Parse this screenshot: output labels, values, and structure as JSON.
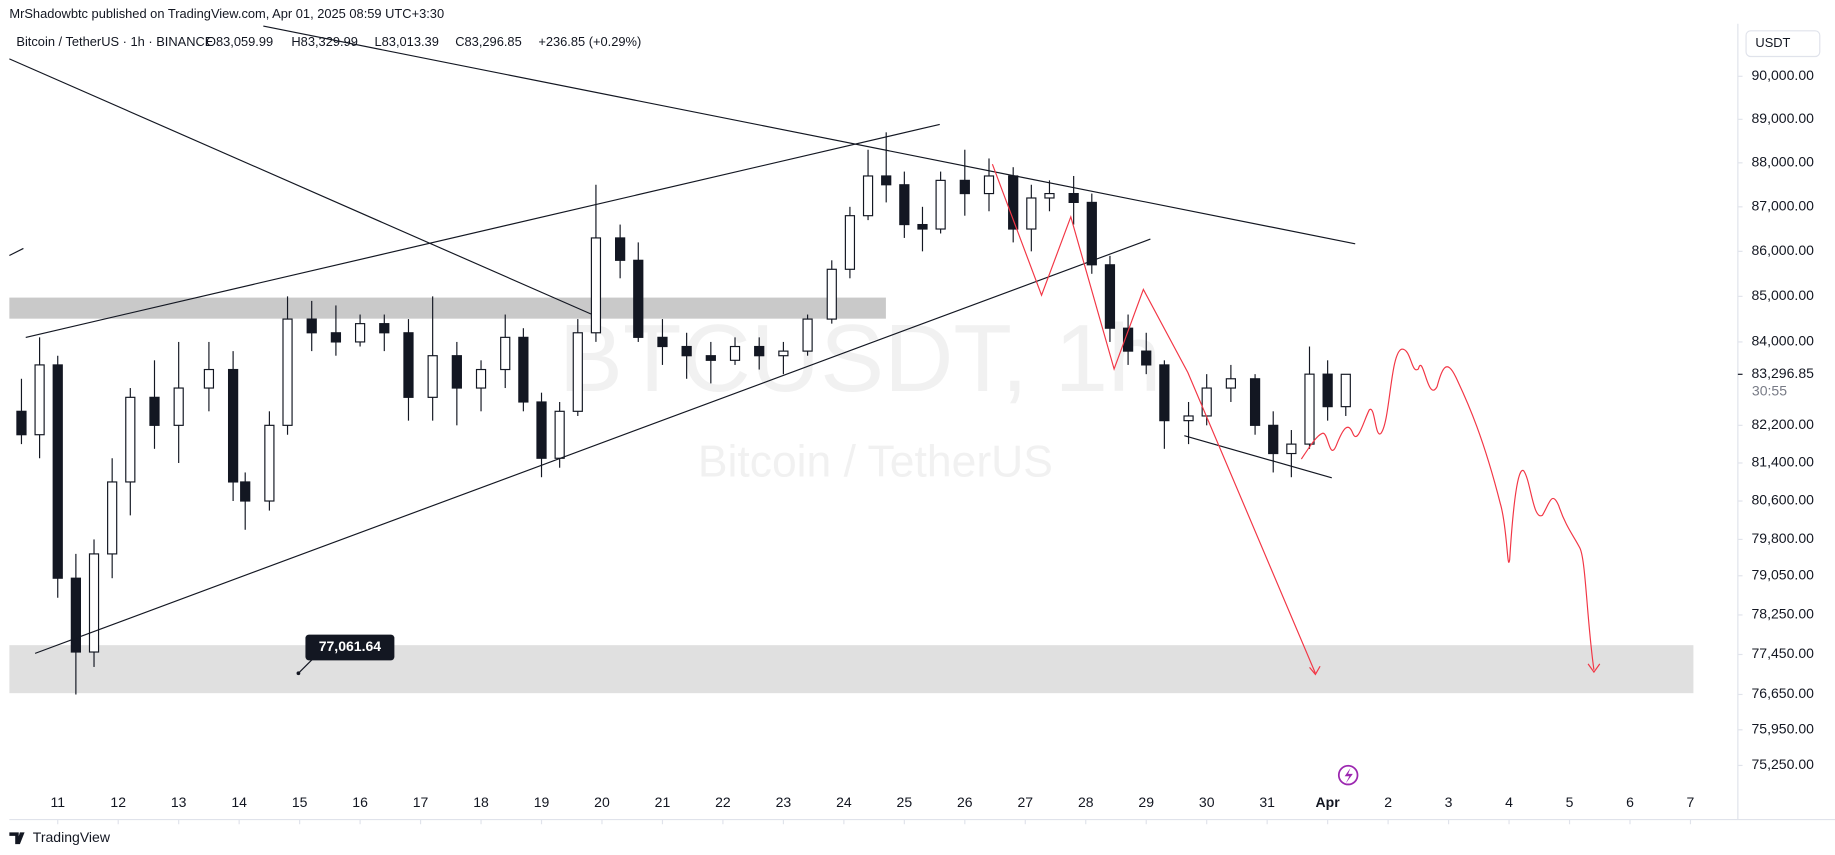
{
  "header": {
    "publisher": "MrShadowbtc published on TradingView.com, Apr 01, 2025 08:59 UTC+3:30",
    "symbol": "Bitcoin / TetherUS · 1h · BINANCE",
    "open": "O83,059.99",
    "high": "H83,329.99",
    "low": "L83,013.39",
    "close": "C83,296.85",
    "change": "+236.85 (+0.29%)",
    "currency": "USDT",
    "logo": "TradingView"
  },
  "chart_data": {
    "type": "candlestick",
    "watermark": "BTCUSDT, 1h",
    "watermark_sub": "Bitcoin / TetherUS",
    "annotation": "77,061.64",
    "last_price": {
      "value": 83296.85,
      "label": "83,296.85"
    },
    "countdown": "30:55",
    "log_scale": true,
    "grid": false,
    "up_color": "#ffffff",
    "down_color": "#131722",
    "outline_color": "#131722",
    "xlim": [
      10.2,
      38.3
    ],
    "xticks": [
      11,
      12,
      13,
      14,
      15,
      16,
      17,
      18,
      19,
      20,
      21,
      22,
      23,
      24,
      25,
      26,
      27,
      28,
      29,
      30,
      31,
      {
        "value": 32,
        "label": "Apr"
      },
      {
        "value": 33,
        "label": "2"
      },
      {
        "value": 34,
        "label": "3"
      },
      {
        "value": 35,
        "label": "4"
      },
      {
        "value": 36,
        "label": "5"
      },
      {
        "value": 37,
        "label": "6"
      },
      {
        "value": 38,
        "label": "7"
      }
    ],
    "ylim": [
      74200,
      90960
    ],
    "yticks": [
      {
        "value": 90000,
        "label": "90,000.00"
      },
      {
        "value": 89000,
        "label": "89,000.00"
      },
      {
        "value": 88000,
        "label": "88,000.00"
      },
      {
        "value": 87000,
        "label": "87,000.00"
      },
      {
        "value": 86000,
        "label": "86,000.00"
      },
      {
        "value": 85000,
        "label": "85,000.00"
      },
      {
        "value": 84000,
        "label": "84,000.00"
      },
      {
        "value": 82200,
        "label": "82,200.00"
      },
      {
        "value": 81400,
        "label": "81,400.00"
      },
      {
        "value": 80600,
        "label": "80,600.00"
      },
      {
        "value": 79800,
        "label": "79,800.00"
      },
      {
        "value": 79050,
        "label": "79,050.00"
      },
      {
        "value": 78250,
        "label": "78,250.00"
      },
      {
        "value": 77450,
        "label": "77,450.00"
      },
      {
        "value": 76650,
        "label": "76,650.00"
      },
      {
        "value": 75950,
        "label": "75,950.00"
      },
      {
        "value": 75250,
        "label": "75,250.00"
      }
    ],
    "x": [
      10.4,
      10.7,
      11.0,
      11.3,
      11.6,
      11.9,
      12.2,
      12.6,
      13.0,
      13.5,
      13.9,
      14.1,
      14.5,
      14.8,
      15.2,
      15.6,
      16.0,
      16.4,
      16.8,
      17.2,
      17.6,
      18.0,
      18.4,
      18.7,
      19.0,
      19.3,
      19.6,
      19.9,
      20.3,
      20.6,
      21.0,
      21.4,
      21.8,
      22.2,
      22.6,
      23.0,
      23.4,
      23.8,
      24.1,
      24.4,
      24.7,
      25.0,
      25.3,
      25.6,
      26.0,
      26.4,
      26.8,
      27.1,
      27.4,
      27.8,
      28.1,
      28.4,
      28.7,
      29.0,
      29.3,
      29.7,
      30.0,
      30.4,
      30.8,
      31.1,
      31.4,
      31.7,
      32.0,
      32.3
    ],
    "open": [
      82500,
      82000,
      83500,
      79000,
      77500,
      79500,
      81000,
      82800,
      82200,
      83000,
      83400,
      81000,
      80600,
      82200,
      84500,
      84200,
      84000,
      84400,
      84200,
      82800,
      83700,
      83000,
      83400,
      84100,
      82700,
      81500,
      82500,
      84200,
      86300,
      85800,
      84100,
      83900,
      83700,
      83600,
      83900,
      83700,
      83800,
      84500,
      85600,
      86800,
      87700,
      87500,
      86600,
      86500,
      87600,
      87300,
      87700,
      86500,
      87200,
      87300,
      87100,
      85700,
      84300,
      83800,
      83500,
      82300,
      82400,
      83000,
      83200,
      82200,
      81600,
      81800,
      83300,
      82600
    ],
    "high": [
      83200,
      84100,
      83700,
      79500,
      79800,
      81500,
      83000,
      83600,
      84000,
      84000,
      83800,
      81200,
      82500,
      85000,
      84900,
      84800,
      84600,
      84600,
      84500,
      85000,
      84000,
      83600,
      84600,
      84300,
      82900,
      82700,
      84500,
      87500,
      86600,
      86200,
      84500,
      84200,
      84000,
      84100,
      84100,
      84000,
      84600,
      85800,
      87000,
      88300,
      88700,
      87800,
      87000,
      87800,
      88300,
      88100,
      87900,
      87500,
      87600,
      87700,
      87300,
      85900,
      84600,
      84200,
      83600,
      82700,
      83300,
      83500,
      83300,
      82500,
      82100,
      83900,
      83600,
      83300
    ],
    "low": [
      81800,
      81500,
      78600,
      76650,
      77200,
      79000,
      80300,
      81700,
      81400,
      82500,
      80600,
      80000,
      80400,
      82000,
      83800,
      83700,
      83900,
      83800,
      82300,
      82300,
      82200,
      82500,
      83000,
      82500,
      81100,
      81300,
      82400,
      84000,
      85400,
      84000,
      83500,
      83200,
      83100,
      83500,
      83400,
      83300,
      83700,
      84400,
      85400,
      86700,
      87100,
      86300,
      86000,
      86400,
      86800,
      86900,
      86200,
      86000,
      86900,
      86600,
      85500,
      84000,
      83500,
      83300,
      81700,
      81800,
      82200,
      82700,
      82000,
      81200,
      81100,
      81700,
      82300,
      82400
    ],
    "close": [
      82000,
      83500,
      79000,
      77500,
      79500,
      81000,
      82800,
      82200,
      83000,
      83400,
      81000,
      80600,
      82200,
      84500,
      84200,
      84000,
      84400,
      84200,
      82800,
      83700,
      83000,
      83400,
      84100,
      82700,
      81500,
      82500,
      84200,
      86300,
      85800,
      84100,
      83900,
      83700,
      83600,
      83900,
      83700,
      83800,
      84500,
      85600,
      86800,
      87700,
      87500,
      86600,
      86500,
      87600,
      87300,
      87700,
      86500,
      87200,
      87300,
      87100,
      85700,
      84300,
      83800,
      83500,
      82300,
      82400,
      83000,
      83200,
      82200,
      81600,
      81800,
      83300,
      82600,
      83296.85
    ]
  }
}
